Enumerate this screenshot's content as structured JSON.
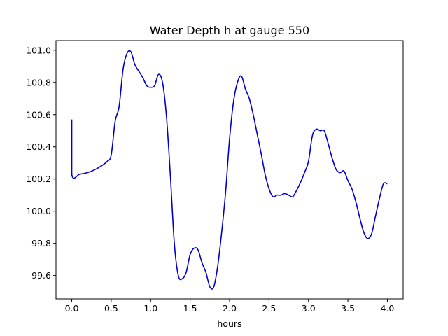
{
  "chart_data": {
    "type": "line",
    "title": "Water Depth h at gauge 550",
    "xlabel": "hours",
    "ylabel": "",
    "xlim": [
      -0.2,
      4.2
    ],
    "ylim": [
      99.455,
      101.06
    ],
    "x_ticks": [
      0.0,
      0.5,
      1.0,
      1.5,
      2.0,
      2.5,
      3.0,
      3.5,
      4.0
    ],
    "x_tick_labels": [
      "0.0",
      "0.5",
      "1.0",
      "1.5",
      "2.0",
      "2.5",
      "3.0",
      "3.5",
      "4.0"
    ],
    "y_ticks": [
      99.6,
      99.8,
      100.0,
      100.2,
      100.4,
      100.6,
      100.8,
      101.0
    ],
    "y_tick_labels": [
      "99.6",
      "99.8",
      "100.0",
      "100.2",
      "100.4",
      "100.6",
      "100.8",
      "101.0"
    ],
    "grid": false,
    "line_color": "#0000cc",
    "series": [
      {
        "x": [
          0.0,
          0.0,
          0.1,
          0.2,
          0.3,
          0.4,
          0.45,
          0.5,
          0.55,
          0.6,
          0.65,
          0.7,
          0.75,
          0.8,
          0.85,
          0.9,
          0.95,
          1.0,
          1.05,
          1.1,
          1.15,
          1.2,
          1.25,
          1.3,
          1.35,
          1.4,
          1.45,
          1.5,
          1.55,
          1.6,
          1.65,
          1.7,
          1.75,
          1.8,
          1.85,
          1.9,
          1.95,
          2.0,
          2.05,
          2.1,
          2.15,
          2.2,
          2.25,
          2.3,
          2.35,
          2.4,
          2.45,
          2.5,
          2.55,
          2.6,
          2.65,
          2.7,
          2.75,
          2.8,
          2.85,
          2.9,
          2.95,
          3.0,
          3.05,
          3.1,
          3.15,
          3.2,
          3.25,
          3.3,
          3.35,
          3.4,
          3.45,
          3.5,
          3.55,
          3.6,
          3.65,
          3.7,
          3.75,
          3.8,
          3.85,
          3.9,
          3.95,
          4.0
        ],
        "y": [
          100.57,
          100.23,
          100.23,
          100.24,
          100.26,
          100.29,
          100.31,
          100.35,
          100.56,
          100.65,
          100.88,
          100.98,
          100.99,
          100.91,
          100.87,
          100.83,
          100.78,
          100.77,
          100.78,
          100.85,
          100.8,
          100.59,
          100.22,
          99.8,
          99.6,
          99.58,
          99.62,
          99.73,
          99.77,
          99.76,
          99.68,
          99.62,
          99.53,
          99.53,
          99.66,
          99.87,
          100.12,
          100.45,
          100.68,
          100.8,
          100.84,
          100.76,
          100.7,
          100.6,
          100.48,
          100.36,
          100.23,
          100.14,
          100.09,
          100.1,
          100.1,
          100.11,
          100.1,
          100.09,
          100.13,
          100.18,
          100.24,
          100.31,
          100.47,
          100.51,
          100.5,
          100.5,
          100.42,
          100.33,
          100.26,
          100.24,
          100.25,
          100.19,
          100.14,
          100.06,
          99.96,
          99.87,
          99.83,
          99.86,
          99.97,
          100.08,
          100.17,
          100.17
        ]
      }
    ]
  }
}
